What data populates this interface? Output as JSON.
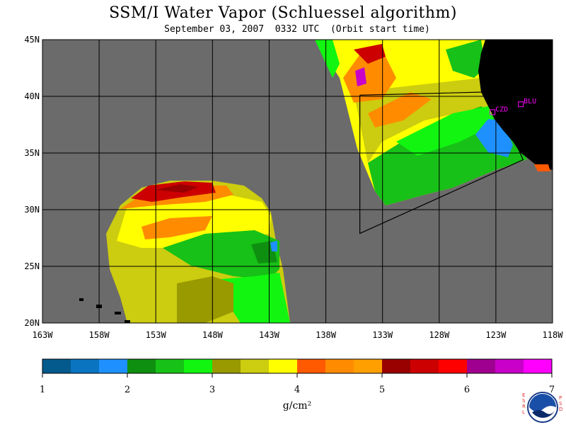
{
  "header": {
    "title": "SSM/I Water Vapor (Schluessel algorithm)",
    "subtitle": "September 03, 2007  0332 UTC  (Orbit start time)"
  },
  "map": {
    "lon_labels": [
      "163W",
      "158W",
      "153W",
      "148W",
      "143W",
      "138W",
      "133W",
      "128W",
      "123W",
      "118W"
    ],
    "lat_labels": [
      "45N",
      "40N",
      "35N",
      "30N",
      "25N",
      "20N"
    ],
    "lon_range": [
      -163,
      -118
    ],
    "lat_range": [
      20,
      45
    ],
    "background_color": "#6b6b6b",
    "land_color": "#000000",
    "stations": [
      {
        "id": "CZD",
        "lon": -123.3,
        "lat": 38.6
      },
      {
        "id": "BLU",
        "lon": -120.8,
        "lat": 39.3
      }
    ],
    "station_color": "#ff00ff",
    "box_outline": [
      [
        -135,
        40.1
      ],
      [
        -123.2,
        40.4
      ],
      [
        -120.6,
        34.4
      ],
      [
        -135,
        27.9
      ],
      [
        -135,
        40.1
      ]
    ]
  },
  "colorbar": {
    "colors": [
      "#045a8d",
      "#0a74c0",
      "#1e90ff",
      "#0f8f0f",
      "#17c117",
      "#11f511",
      "#999900",
      "#cccc10",
      "#ffff00",
      "#ff5a00",
      "#ff8c00",
      "#ffa000",
      "#990000",
      "#cc0000",
      "#ff0000",
      "#a00090",
      "#c800c8",
      "#ff00ff"
    ],
    "tick_labels": [
      "1",
      "2",
      "3",
      "4",
      "5",
      "6",
      "7"
    ],
    "unit": "g/cm²"
  },
  "logo": {
    "left_letters": "ESRL",
    "right_letters": "PSD",
    "text": "NOAA"
  }
}
